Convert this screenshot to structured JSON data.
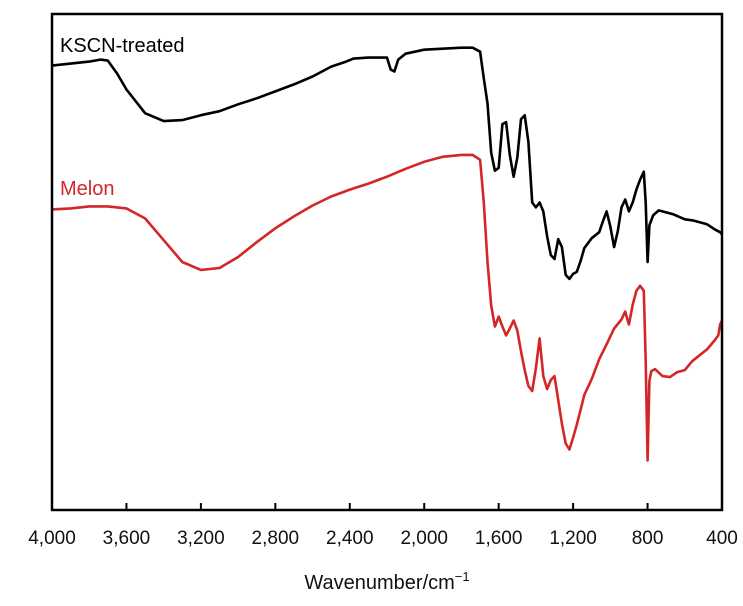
{
  "chart_data": {
    "type": "line",
    "xlabel": "Wavenumber/cm",
    "xlabel_superscript": "−1",
    "xlim": [
      4000,
      400
    ],
    "x_reversed": true,
    "ylabel": "",
    "y_ticks": false,
    "grid": false,
    "legend": "inline labels above each trace",
    "x_ticks": [
      {
        "value": 4000,
        "label": "4,000"
      },
      {
        "value": 3600,
        "label": "3,600"
      },
      {
        "value": 3200,
        "label": "3,200"
      },
      {
        "value": 2800,
        "label": "2,800"
      },
      {
        "value": 2400,
        "label": "2,400"
      },
      {
        "value": 2000,
        "label": "2,000"
      },
      {
        "value": 1600,
        "label": "1,600"
      },
      {
        "value": 1200,
        "label": "1,200"
      },
      {
        "value": 800,
        "label": "800"
      },
      {
        "value": 400,
        "label": "400"
      }
    ],
    "ylim": [
      0,
      100
    ],
    "series": [
      {
        "name": "KSCN-treated",
        "color": "#000000",
        "points": [
          [
            4000,
            89.6
          ],
          [
            3900,
            90.0
          ],
          [
            3800,
            90.4
          ],
          [
            3740,
            90.8
          ],
          [
            3700,
            90.6
          ],
          [
            3650,
            88.0
          ],
          [
            3600,
            84.8
          ],
          [
            3500,
            80.0
          ],
          [
            3400,
            78.4
          ],
          [
            3300,
            78.6
          ],
          [
            3200,
            79.6
          ],
          [
            3100,
            80.4
          ],
          [
            3000,
            81.8
          ],
          [
            2900,
            83.0
          ],
          [
            2800,
            84.4
          ],
          [
            2700,
            85.8
          ],
          [
            2600,
            87.4
          ],
          [
            2500,
            89.4
          ],
          [
            2420,
            90.4
          ],
          [
            2380,
            91.0
          ],
          [
            2300,
            91.2
          ],
          [
            2200,
            91.2
          ],
          [
            2180,
            88.8
          ],
          [
            2160,
            88.4
          ],
          [
            2140,
            90.8
          ],
          [
            2100,
            92.0
          ],
          [
            2000,
            92.8
          ],
          [
            1900,
            93.0
          ],
          [
            1800,
            93.2
          ],
          [
            1740,
            93.2
          ],
          [
            1700,
            92.4
          ],
          [
            1680,
            87.0
          ],
          [
            1660,
            82.0
          ],
          [
            1640,
            72.0
          ],
          [
            1620,
            68.4
          ],
          [
            1600,
            69.0
          ],
          [
            1580,
            77.8
          ],
          [
            1560,
            78.2
          ],
          [
            1540,
            71.6
          ],
          [
            1520,
            67.2
          ],
          [
            1500,
            71.0
          ],
          [
            1480,
            78.8
          ],
          [
            1460,
            79.6
          ],
          [
            1440,
            74.2
          ],
          [
            1420,
            62.0
          ],
          [
            1400,
            61.0
          ],
          [
            1380,
            62.0
          ],
          [
            1360,
            60.2
          ],
          [
            1340,
            55.2
          ],
          [
            1320,
            51.4
          ],
          [
            1300,
            50.6
          ],
          [
            1280,
            54.6
          ],
          [
            1260,
            53.0
          ],
          [
            1240,
            47.4
          ],
          [
            1220,
            46.6
          ],
          [
            1200,
            47.6
          ],
          [
            1180,
            48.0
          ],
          [
            1160,
            50.2
          ],
          [
            1140,
            52.8
          ],
          [
            1100,
            54.8
          ],
          [
            1060,
            56.0
          ],
          [
            1040,
            58.2
          ],
          [
            1020,
            60.2
          ],
          [
            1000,
            57.2
          ],
          [
            980,
            53.0
          ],
          [
            960,
            56.2
          ],
          [
            940,
            61.0
          ],
          [
            920,
            62.6
          ],
          [
            900,
            60.2
          ],
          [
            880,
            62.0
          ],
          [
            860,
            64.6
          ],
          [
            840,
            66.6
          ],
          [
            820,
            68.2
          ],
          [
            810,
            62.0
          ],
          [
            800,
            50.0
          ],
          [
            790,
            57.4
          ],
          [
            770,
            59.4
          ],
          [
            740,
            60.4
          ],
          [
            700,
            60.0
          ],
          [
            660,
            59.6
          ],
          [
            600,
            58.6
          ],
          [
            560,
            58.4
          ],
          [
            520,
            58.0
          ],
          [
            480,
            57.6
          ],
          [
            440,
            56.6
          ],
          [
            410,
            56.0
          ],
          [
            400,
            55.6
          ]
        ]
      },
      {
        "name": "Melon",
        "color": "#d42626",
        "points": [
          [
            4000,
            60.6
          ],
          [
            3900,
            60.8
          ],
          [
            3800,
            61.2
          ],
          [
            3700,
            61.2
          ],
          [
            3600,
            60.8
          ],
          [
            3500,
            58.8
          ],
          [
            3400,
            54.4
          ],
          [
            3300,
            50.0
          ],
          [
            3200,
            48.4
          ],
          [
            3100,
            48.8
          ],
          [
            3000,
            51.0
          ],
          [
            2900,
            54.0
          ],
          [
            2800,
            56.8
          ],
          [
            2700,
            59.2
          ],
          [
            2600,
            61.4
          ],
          [
            2500,
            63.2
          ],
          [
            2400,
            64.6
          ],
          [
            2300,
            65.8
          ],
          [
            2200,
            67.2
          ],
          [
            2100,
            68.8
          ],
          [
            2000,
            70.2
          ],
          [
            1900,
            71.2
          ],
          [
            1800,
            71.6
          ],
          [
            1740,
            71.6
          ],
          [
            1700,
            70.6
          ],
          [
            1680,
            62.0
          ],
          [
            1660,
            50.0
          ],
          [
            1640,
            41.2
          ],
          [
            1620,
            37.0
          ],
          [
            1600,
            39.0
          ],
          [
            1580,
            37.0
          ],
          [
            1560,
            35.2
          ],
          [
            1540,
            36.6
          ],
          [
            1520,
            38.2
          ],
          [
            1500,
            36.2
          ],
          [
            1480,
            32.0
          ],
          [
            1460,
            28.2
          ],
          [
            1440,
            25.0
          ],
          [
            1420,
            24.0
          ],
          [
            1400,
            28.6
          ],
          [
            1380,
            34.6
          ],
          [
            1360,
            27.0
          ],
          [
            1340,
            24.4
          ],
          [
            1320,
            26.2
          ],
          [
            1300,
            27.0
          ],
          [
            1280,
            22.2
          ],
          [
            1260,
            17.4
          ],
          [
            1240,
            13.4
          ],
          [
            1220,
            12.2
          ],
          [
            1200,
            14.6
          ],
          [
            1180,
            17.2
          ],
          [
            1160,
            20.2
          ],
          [
            1140,
            23.2
          ],
          [
            1100,
            26.4
          ],
          [
            1060,
            30.4
          ],
          [
            1020,
            33.4
          ],
          [
            980,
            36.6
          ],
          [
            940,
            38.4
          ],
          [
            920,
            40.0
          ],
          [
            900,
            37.4
          ],
          [
            880,
            41.4
          ],
          [
            860,
            44.2
          ],
          [
            840,
            45.2
          ],
          [
            820,
            44.2
          ],
          [
            810,
            30.0
          ],
          [
            800,
            10.0
          ],
          [
            790,
            26.0
          ],
          [
            780,
            28.0
          ],
          [
            760,
            28.4
          ],
          [
            720,
            27.0
          ],
          [
            680,
            26.8
          ],
          [
            640,
            27.8
          ],
          [
            600,
            28.2
          ],
          [
            560,
            30.0
          ],
          [
            520,
            31.2
          ],
          [
            480,
            32.4
          ],
          [
            440,
            34.2
          ],
          [
            420,
            35.2
          ],
          [
            410,
            37.4
          ],
          [
            400,
            38.2
          ]
        ]
      }
    ]
  }
}
